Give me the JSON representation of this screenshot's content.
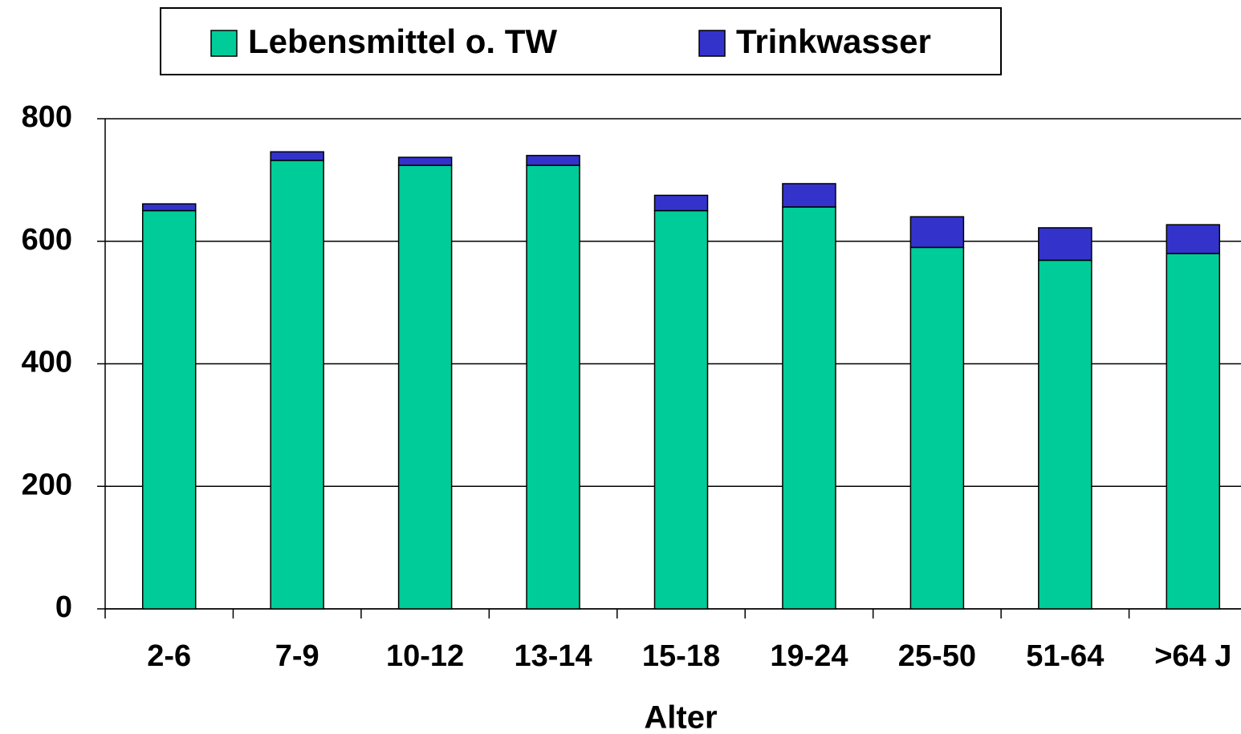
{
  "chart_data": {
    "type": "stacked_bar",
    "xlabel": "Alter",
    "categories": [
      "2-6",
      "7-9",
      "10-12",
      "13-14",
      "15-18",
      "19-24",
      "25-50",
      "51-64",
      ">64 J"
    ],
    "series": [
      {
        "name": "Lebensmittel o. TW",
        "color": "#00cc99",
        "values": [
          650,
          732,
          724,
          724,
          650,
          656,
          590,
          569,
          580
        ]
      },
      {
        "name": "Trinkwasser",
        "color": "#3333cc",
        "values": [
          11,
          14,
          13,
          16,
          25,
          38,
          50,
          53,
          47
        ]
      }
    ],
    "ylim": [
      0,
      800
    ],
    "yticks": [
      0,
      200,
      400,
      600,
      800
    ],
    "grid": true,
    "legend": "top"
  }
}
